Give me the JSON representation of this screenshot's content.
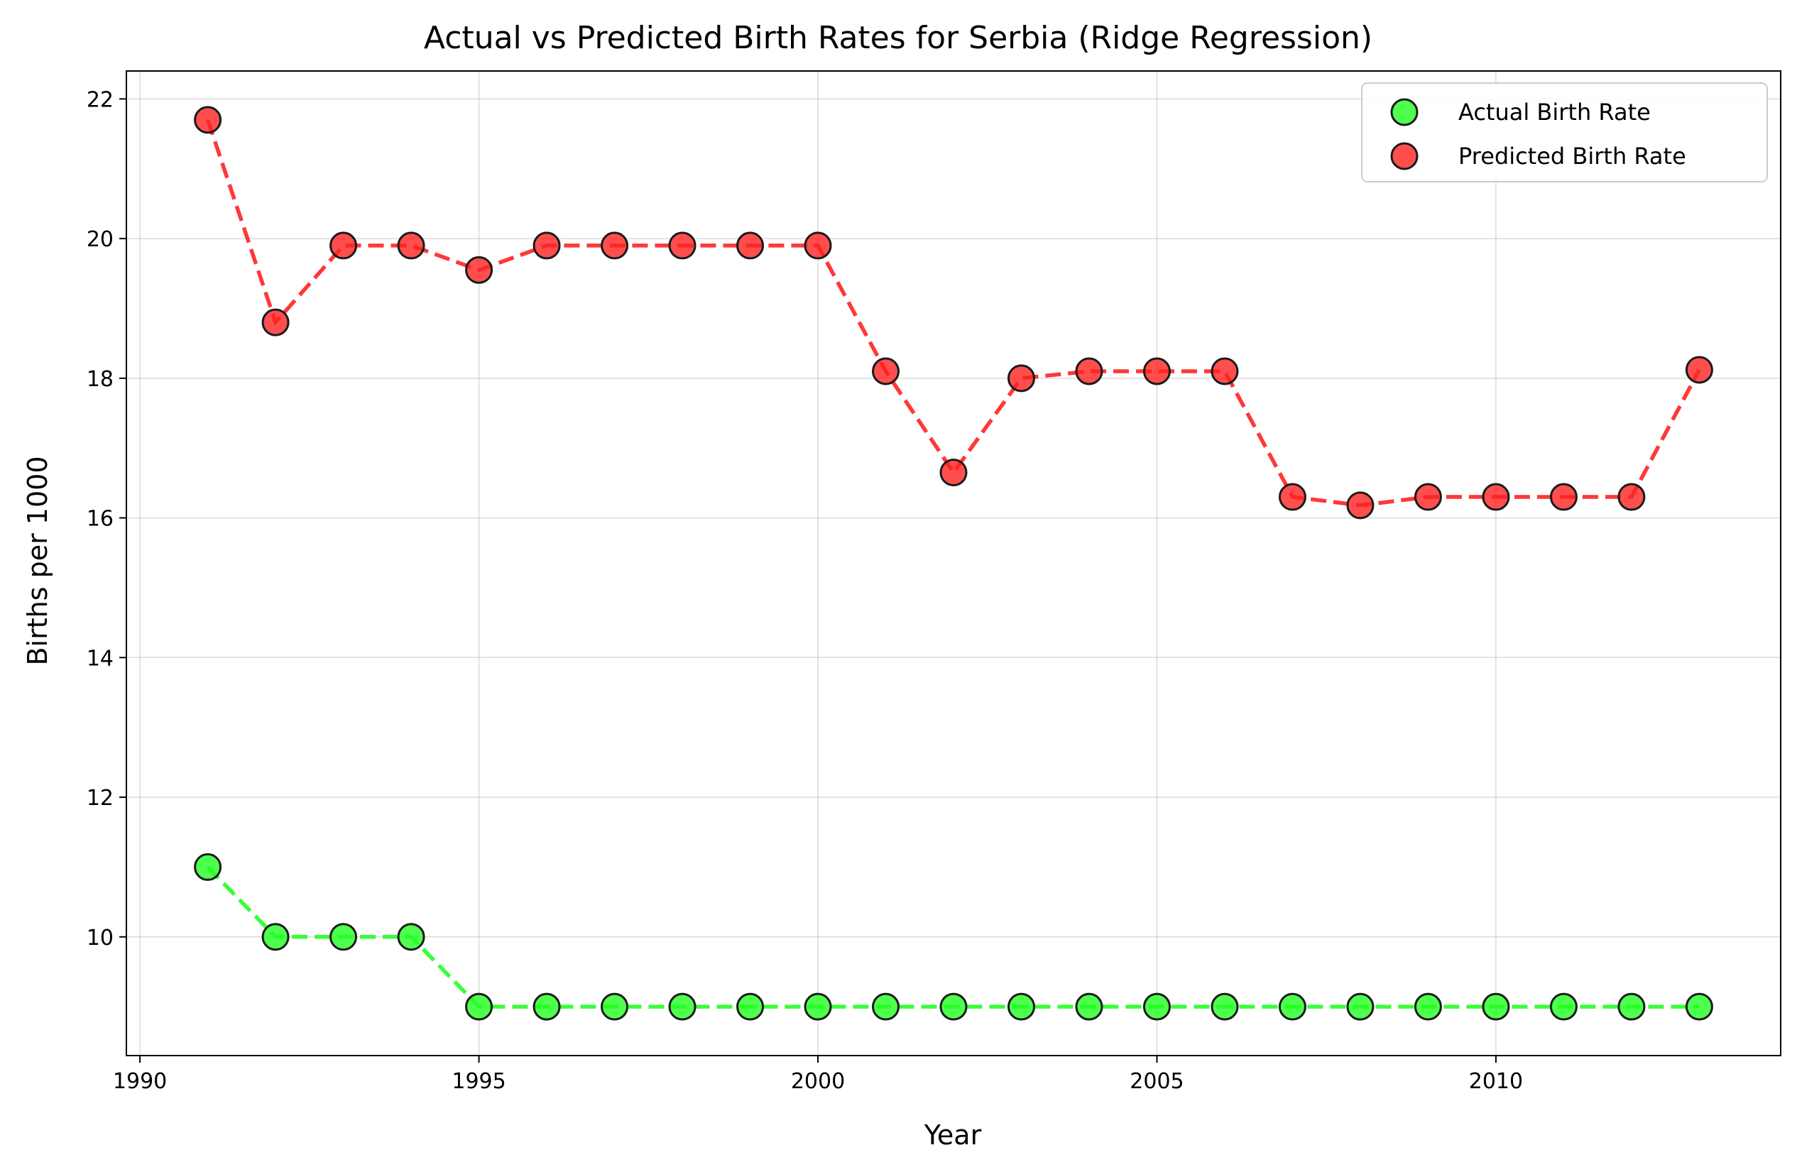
{
  "chart_data": {
    "type": "line",
    "title": "Actual vs Predicted Birth Rates for Serbia (Ridge Regression)",
    "xlabel": "Year",
    "ylabel": "Births per 1000",
    "xlim": [
      1989.8,
      2014.2
    ],
    "ylim": [
      8.3,
      22.4
    ],
    "xticks": [
      1990,
      1995,
      2000,
      2005,
      2010
    ],
    "yticks": [
      10,
      12,
      14,
      16,
      18,
      20,
      22
    ],
    "grid": true,
    "legend_position": "top-right",
    "x": [
      1991,
      1992,
      1993,
      1994,
      1995,
      1996,
      1997,
      1998,
      1999,
      2000,
      2001,
      2002,
      2003,
      2004,
      2005,
      2006,
      2007,
      2008,
      2009,
      2010,
      2011,
      2012,
      2013
    ],
    "series": [
      {
        "name": "Actual Birth Rate",
        "color": "#22ff22",
        "values": [
          11,
          10,
          10,
          10,
          9,
          9,
          9,
          9,
          9,
          9,
          9,
          9,
          9,
          9,
          9,
          9,
          9,
          9,
          9,
          9,
          9,
          9,
          9
        ]
      },
      {
        "name": "Predicted Birth Rate",
        "color": "#ff2222",
        "values": [
          21.7,
          18.8,
          19.9,
          19.9,
          19.55,
          19.9,
          19.9,
          19.9,
          19.9,
          19.9,
          18.1,
          16.65,
          18.0,
          18.1,
          18.1,
          18.1,
          16.3,
          16.18,
          16.3,
          16.3,
          16.3,
          16.3,
          18.12
        ]
      }
    ]
  }
}
